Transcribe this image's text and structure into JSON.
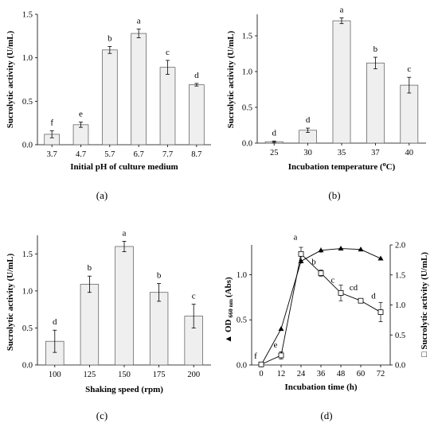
{
  "figure": {
    "panels": [
      "(a)",
      "(b)",
      "(c)",
      "(d)"
    ]
  },
  "chart_data": [
    {
      "type": "bar",
      "title": "",
      "categories": [
        "3.7",
        "4.7",
        "5.7",
        "6.7",
        "7.7",
        "8.7"
      ],
      "values": [
        0.12,
        0.23,
        1.09,
        1.28,
        0.89,
        0.69
      ],
      "errors": [
        0.04,
        0.03,
        0.04,
        0.05,
        0.08,
        0.015
      ],
      "letters": [
        "f",
        "e",
        "b",
        "a",
        "c",
        "d"
      ],
      "xlabel": "Initial pH of culture medium",
      "ylabel": "Sucrolytic activity (U/mL)",
      "ylim": [
        0,
        1.5
      ],
      "yticks": [
        "0.0",
        "0.5",
        "1.0",
        "1.5"
      ],
      "bar_color": "#efefef",
      "panel_label": "(a)"
    },
    {
      "type": "bar",
      "title": "",
      "categories": [
        "25",
        "30",
        "35",
        "37",
        "40"
      ],
      "values": [
        0.02,
        0.18,
        1.71,
        1.12,
        0.81
      ],
      "errors": [
        0.01,
        0.03,
        0.04,
        0.08,
        0.11
      ],
      "letters": [
        "d",
        "d",
        "a",
        "b",
        "c"
      ],
      "xlabel": "Incubation temperature (",
      "xlabel_sup": "o",
      "xlabel_end": "C)",
      "ylabel": "Sucrolytic activity (U/mL)",
      "ylim": [
        0,
        1.8
      ],
      "yticks": [
        "0.0",
        "0.5",
        "1.0",
        "1.5"
      ],
      "ytick_values": [
        0,
        0.5,
        1.0,
        1.5
      ],
      "bar_color": "#efefef",
      "panel_label": "(b)"
    },
    {
      "type": "bar",
      "title": "",
      "categories": [
        "100",
        "125",
        "150",
        "175",
        "200"
      ],
      "values": [
        0.32,
        1.09,
        1.6,
        0.98,
        0.66
      ],
      "errors": [
        0.15,
        0.11,
        0.07,
        0.12,
        0.16
      ],
      "letters": [
        "d",
        "b",
        "a",
        "b",
        "c"
      ],
      "xlabel": "Shaking speed (rpm)",
      "ylabel": "Sucrolytic activity (U/mL)",
      "ylim": [
        0,
        1.75
      ],
      "yticks": [
        "0.0",
        "0.5",
        "1.0",
        "1.5"
      ],
      "ytick_values": [
        0,
        0.5,
        1.0,
        1.5
      ],
      "bar_color": "#efefef",
      "panel_label": "(c)"
    },
    {
      "type": "line",
      "title": "",
      "x": [
        0,
        12,
        24,
        36,
        48,
        60,
        72
      ],
      "xticks": [
        "0",
        "12",
        "24",
        "36",
        "48",
        "60",
        "72"
      ],
      "xlabel": "Incubation time (h)",
      "series": [
        {
          "name": "OD",
          "axis": "left",
          "marker": "triangle",
          "values": [
            0.0,
            0.4,
            1.15,
            1.27,
            1.29,
            1.28,
            1.18
          ],
          "errors": [
            0.01,
            0.01,
            0.03,
            0.03,
            0.02,
            0.02,
            0.02
          ]
        },
        {
          "name": "Sucrolytic activity (U/mL)",
          "axis": "right",
          "marker": "square",
          "values": [
            0.01,
            0.16,
            1.85,
            1.53,
            1.2,
            1.07,
            0.88
          ],
          "errors": [
            0.01,
            0.06,
            0.11,
            0.05,
            0.13,
            0.03,
            0.16
          ],
          "letters": [
            "f",
            "e",
            "a",
            "b",
            "c",
            "cd",
            "d"
          ]
        }
      ],
      "ylabel_left_prefix": "▲ OD",
      "ylabel_left_sub": "660 nm",
      "ylabel_left_suffix": "(Abs)",
      "ylabel_right": "□ Sucrolytic activity (U/mL)",
      "ylim_left": [
        0,
        1.33
      ],
      "ylim_right": [
        0,
        2.0
      ],
      "yticks_left": [
        "0.0",
        "0.5",
        "1.0"
      ],
      "ytick_left_values": [
        0,
        0.5,
        1.0
      ],
      "yticks_right": [
        "0.0",
        "0.5",
        "1.0",
        "1.5",
        "2.0"
      ],
      "ytick_right_values": [
        0,
        0.5,
        1.0,
        1.5,
        2.0
      ],
      "panel_label": "(d)"
    }
  ]
}
